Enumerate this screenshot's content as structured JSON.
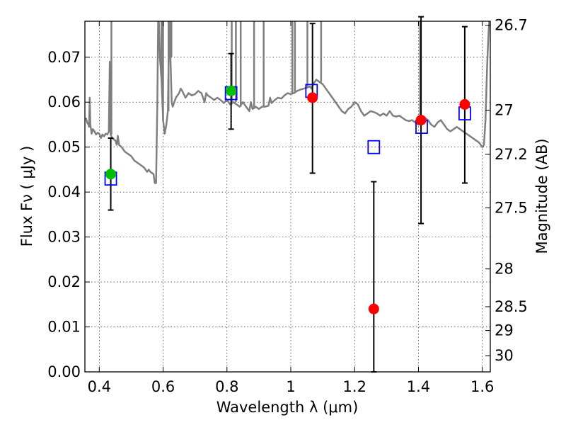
{
  "chart_data": {
    "type": "scatter",
    "xlabel": "Wavelength  λ (μm)",
    "ylabel": "Flux  Fν  ( μJy )",
    "y2label": "Magnitude (AB)",
    "xlim": [
      0.355,
      1.625
    ],
    "ylim": [
      0.0,
      0.078
    ],
    "x_ticks": [
      0.4,
      0.6,
      0.8,
      1.0,
      1.2,
      1.4,
      1.6
    ],
    "x_tick_labels": [
      "0.4",
      "0.6",
      "0.8",
      "1",
      "1.2",
      "1.4",
      "1.6"
    ],
    "y_ticks": [
      0.0,
      0.01,
      0.02,
      0.03,
      0.04,
      0.05,
      0.06,
      0.07
    ],
    "y_tick_labels": [
      "0.00",
      "0.01",
      "0.02",
      "0.03",
      "0.04",
      "0.05",
      "0.06",
      "0.07"
    ],
    "magnitude_ticks": [
      {
        "label": "26.7",
        "flux": 0.0771
      },
      {
        "label": "27",
        "flux": 0.0582
      },
      {
        "label": "27.2",
        "flux": 0.0484
      },
      {
        "label": "27.5",
        "flux": 0.0365
      },
      {
        "label": "28",
        "flux": 0.0229
      },
      {
        "label": "28.5",
        "flux": 0.0145
      },
      {
        "label": "29",
        "flux": 0.0092
      },
      {
        "label": "30",
        "flux": 0.0036
      }
    ],
    "grid": true,
    "colors": {
      "template": "#7f7f7f",
      "model_marker": "#0000ff",
      "detection": "#00bf00",
      "measurement": "#ff0000",
      "errorbar": "#000000"
    },
    "template_spectrum": [
      [
        0.358,
        0.0565
      ],
      [
        0.362,
        0.0555
      ],
      [
        0.366,
        0.055
      ],
      [
        0.368,
        0.0545
      ],
      [
        0.37,
        0.061
      ],
      [
        0.372,
        0.055
      ],
      [
        0.376,
        0.053
      ],
      [
        0.38,
        0.054
      ],
      [
        0.385,
        0.0535
      ],
      [
        0.39,
        0.0528
      ],
      [
        0.395,
        0.0532
      ],
      [
        0.4,
        0.053
      ],
      [
        0.405,
        0.052
      ],
      [
        0.41,
        0.0528
      ],
      [
        0.415,
        0.0524
      ],
      [
        0.42,
        0.053
      ],
      [
        0.425,
        0.0528
      ],
      [
        0.43,
        0.0534
      ],
      [
        0.433,
        0.069
      ],
      [
        0.436,
        0.0528
      ],
      [
        0.44,
        0.052
      ],
      [
        0.45,
        0.0515
      ],
      [
        0.455,
        0.0505
      ],
      [
        0.458,
        0.0525
      ],
      [
        0.462,
        0.0505
      ],
      [
        0.47,
        0.05
      ],
      [
        0.48,
        0.049
      ],
      [
        0.49,
        0.0485
      ],
      [
        0.5,
        0.048
      ],
      [
        0.51,
        0.047
      ],
      [
        0.52,
        0.0465
      ],
      [
        0.53,
        0.046
      ],
      [
        0.54,
        0.0455
      ],
      [
        0.55,
        0.0445
      ],
      [
        0.555,
        0.045
      ],
      [
        0.56,
        0.0445
      ],
      [
        0.57,
        0.044
      ],
      [
        0.574,
        0.042
      ],
      [
        0.578,
        0.042
      ],
      [
        0.582,
        0.06
      ],
      [
        0.585,
        0.082
      ],
      [
        0.59,
        0.07
      ],
      [
        0.595,
        0.065
      ],
      [
        0.6,
        0.056
      ],
      [
        0.605,
        0.053
      ],
      [
        0.61,
        0.055
      ],
      [
        0.615,
        0.058
      ],
      [
        0.62,
        0.082
      ],
      [
        0.623,
        0.07
      ],
      [
        0.627,
        0.06
      ],
      [
        0.63,
        0.059
      ],
      [
        0.64,
        0.061
      ],
      [
        0.65,
        0.062
      ],
      [
        0.655,
        0.063
      ],
      [
        0.66,
        0.0625
      ],
      [
        0.67,
        0.061
      ],
      [
        0.68,
        0.062
      ],
      [
        0.69,
        0.0615
      ],
      [
        0.7,
        0.0618
      ],
      [
        0.71,
        0.0625
      ],
      [
        0.72,
        0.062
      ],
      [
        0.73,
        0.06
      ],
      [
        0.735,
        0.062
      ],
      [
        0.74,
        0.0615
      ],
      [
        0.75,
        0.061
      ],
      [
        0.76,
        0.0605
      ],
      [
        0.77,
        0.061
      ],
      [
        0.78,
        0.0605
      ],
      [
        0.79,
        0.0598
      ],
      [
        0.8,
        0.0605
      ],
      [
        0.81,
        0.0595
      ],
      [
        0.82,
        0.06
      ],
      [
        0.83,
        0.0595
      ],
      [
        0.84,
        0.059
      ],
      [
        0.85,
        0.06
      ],
      [
        0.86,
        0.059
      ],
      [
        0.87,
        0.058
      ],
      [
        0.875,
        0.06
      ],
      [
        0.88,
        0.0585
      ],
      [
        0.89,
        0.059
      ],
      [
        0.9,
        0.0585
      ],
      [
        0.91,
        0.059
      ],
      [
        0.92,
        0.059
      ],
      [
        0.93,
        0.0592
      ],
      [
        0.935,
        0.061
      ],
      [
        0.94,
        0.0598
      ],
      [
        0.95,
        0.0605
      ],
      [
        0.96,
        0.061
      ],
      [
        0.97,
        0.0608
      ],
      [
        0.98,
        0.0615
      ],
      [
        0.99,
        0.062
      ],
      [
        1.0,
        0.0618
      ],
      [
        1.01,
        0.062
      ],
      [
        1.02,
        0.0625
      ],
      [
        1.03,
        0.0628
      ],
      [
        1.04,
        0.063
      ],
      [
        1.05,
        0.0632
      ],
      [
        1.06,
        0.0635
      ],
      [
        1.065,
        0.063
      ],
      [
        1.07,
        0.064
      ],
      [
        1.08,
        0.065
      ],
      [
        1.09,
        0.0645
      ],
      [
        1.1,
        0.064
      ],
      [
        1.11,
        0.063
      ],
      [
        1.12,
        0.062
      ],
      [
        1.13,
        0.061
      ],
      [
        1.14,
        0.06
      ],
      [
        1.15,
        0.059
      ],
      [
        1.16,
        0.058
      ],
      [
        1.17,
        0.0575
      ],
      [
        1.18,
        0.0585
      ],
      [
        1.19,
        0.059
      ],
      [
        1.2,
        0.06
      ],
      [
        1.21,
        0.0595
      ],
      [
        1.22,
        0.058
      ],
      [
        1.23,
        0.057
      ],
      [
        1.24,
        0.0575
      ],
      [
        1.25,
        0.058
      ],
      [
        1.26,
        0.0578
      ],
      [
        1.27,
        0.0575
      ],
      [
        1.28,
        0.057
      ],
      [
        1.29,
        0.0575
      ],
      [
        1.3,
        0.057
      ],
      [
        1.31,
        0.058
      ],
      [
        1.32,
        0.057
      ],
      [
        1.33,
        0.0568
      ],
      [
        1.34,
        0.057
      ],
      [
        1.35,
        0.0565
      ],
      [
        1.36,
        0.056
      ],
      [
        1.37,
        0.0558
      ],
      [
        1.38,
        0.056
      ],
      [
        1.39,
        0.0555
      ],
      [
        1.4,
        0.055
      ],
      [
        1.41,
        0.056
      ],
      [
        1.42,
        0.0565
      ],
      [
        1.43,
        0.056
      ],
      [
        1.44,
        0.055
      ],
      [
        1.45,
        0.0545
      ],
      [
        1.46,
        0.0555
      ],
      [
        1.47,
        0.056
      ],
      [
        1.48,
        0.055
      ],
      [
        1.49,
        0.054
      ],
      [
        1.5,
        0.0535
      ],
      [
        1.51,
        0.054
      ],
      [
        1.52,
        0.0545
      ],
      [
        1.53,
        0.054
      ],
      [
        1.54,
        0.0535
      ],
      [
        1.55,
        0.053
      ],
      [
        1.56,
        0.0525
      ],
      [
        1.57,
        0.052
      ],
      [
        1.58,
        0.0515
      ],
      [
        1.59,
        0.051
      ],
      [
        1.6,
        0.05
      ],
      [
        1.605,
        0.0505
      ],
      [
        1.61,
        0.056
      ],
      [
        1.615,
        0.068
      ],
      [
        1.62,
        0.076
      ],
      [
        1.623,
        0.079
      ]
    ],
    "template_spikes": [
      0.438,
      0.595,
      0.6,
      0.617,
      0.626,
      0.815,
      0.828,
      0.843,
      0.885,
      0.915,
      1.005,
      1.013,
      1.052,
      1.095,
      1.405
    ],
    "model_points": [
      {
        "x": 0.436,
        "y": 0.043
      },
      {
        "x": 0.813,
        "y": 0.062
      },
      {
        "x": 1.065,
        "y": 0.0625
      },
      {
        "x": 1.26,
        "y": 0.05
      },
      {
        "x": 1.41,
        "y": 0.0545
      },
      {
        "x": 1.545,
        "y": 0.0575
      }
    ],
    "measurements": [
      {
        "x": 0.436,
        "y": 0.044,
        "err_low": 0.036,
        "err_high": 0.052,
        "kind": "detection"
      },
      {
        "x": 0.813,
        "y": 0.0625,
        "err_low": 0.054,
        "err_high": 0.0708,
        "kind": "detection"
      },
      {
        "x": 1.068,
        "y": 0.061,
        "err_low": 0.0442,
        "err_high": 0.0775,
        "kind": "measurement"
      },
      {
        "x": 1.26,
        "y": 0.014,
        "err_low": 0.0,
        "err_high": 0.0423,
        "kind": "measurement"
      },
      {
        "x": 1.408,
        "y": 0.056,
        "err_low": 0.033,
        "err_high": 0.079,
        "kind": "measurement"
      },
      {
        "x": 1.545,
        "y": 0.0595,
        "err_low": 0.042,
        "err_high": 0.0768,
        "kind": "measurement"
      }
    ]
  }
}
